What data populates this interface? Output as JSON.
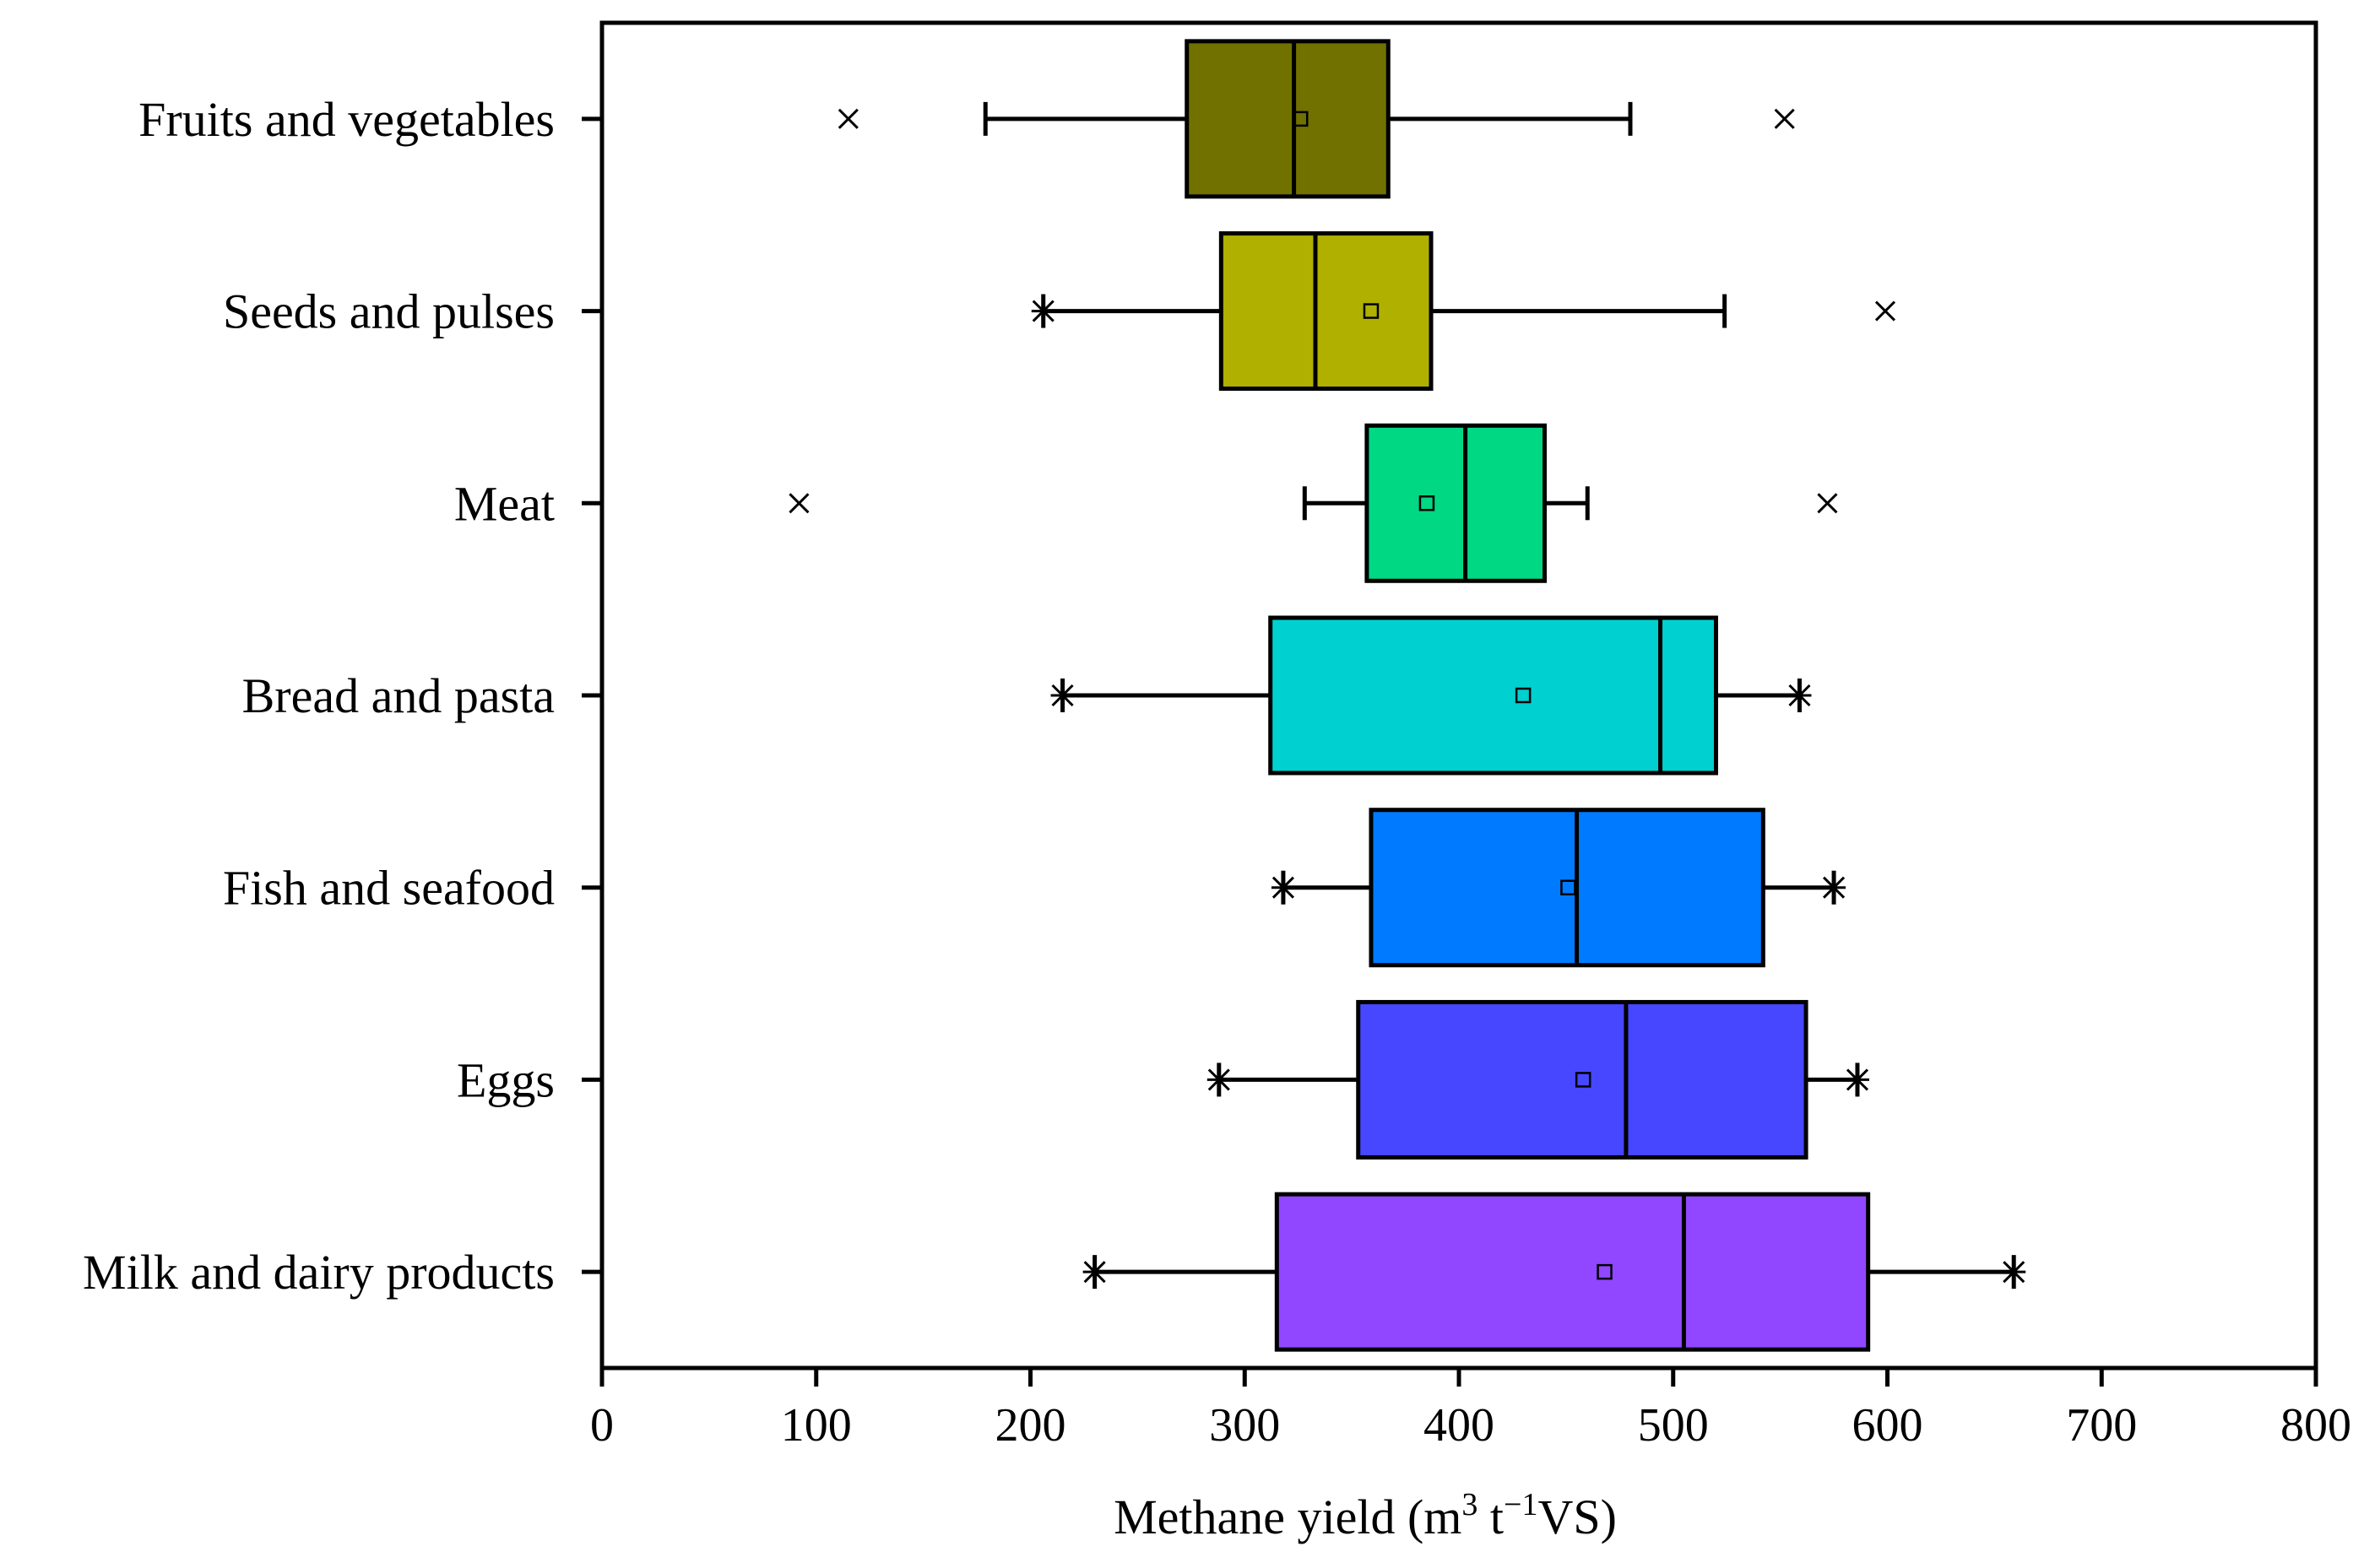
{
  "chart_data": {
    "type": "box",
    "orientation": "horizontal",
    "xlabel": {
      "main": "Methane yield (m",
      "sup1": "3",
      "mid": " t",
      "sup2": "−1",
      "end": "VS)"
    },
    "xlim": [
      0,
      800
    ],
    "xticks": [
      "0",
      "100",
      "200",
      "300",
      "400",
      "500",
      "600",
      "700",
      "800"
    ],
    "grid": false,
    "categories": [
      "Fruits and vegetables",
      "Seeds and pulses",
      "Meat",
      "Bread and pasta",
      "Fish and seafood",
      "Eggs",
      "Milk and dairy products"
    ],
    "boxes": [
      {
        "category": "Fruits and vegetables",
        "color": "#717100",
        "whisker_low": 179,
        "q1": 273,
        "median": 323,
        "q3": 367,
        "whisker_high": 480,
        "mean": 326,
        "outliers": [],
        "extremes": [
          115,
          552
        ]
      },
      {
        "category": "Seeds and pulses",
        "color": "#b0b000",
        "whisker_low": 206,
        "q1": 289,
        "median": 333,
        "q3": 387,
        "whisker_high": 524,
        "mean": 359,
        "outliers": [
          206
        ],
        "extremes": [
          599
        ]
      },
      {
        "category": "Meat",
        "color": "#00d884",
        "whisker_low": 328,
        "q1": 357,
        "median": 403,
        "q3": 440,
        "whisker_high": 460,
        "mean": 385,
        "outliers": [],
        "extremes": [
          92,
          572
        ]
      },
      {
        "category": "Bread and pasta",
        "color": "#00d0d0",
        "whisker_low": 215,
        "q1": 312,
        "median": 494,
        "q3": 520,
        "whisker_high": 559,
        "mean": 430,
        "outliers": [
          215,
          559
        ],
        "extremes": []
      },
      {
        "category": "Fish and seafood",
        "color": "#007bff",
        "whisker_low": 318,
        "q1": 359,
        "median": 455,
        "q3": 542,
        "whisker_high": 575,
        "mean": 451,
        "outliers": [
          318,
          575
        ],
        "extremes": []
      },
      {
        "category": "Eggs",
        "color": "#4747ff",
        "whisker_low": 288,
        "q1": 353,
        "median": 478,
        "q3": 562,
        "whisker_high": 586,
        "mean": 458,
        "outliers": [
          288,
          586
        ],
        "extremes": []
      },
      {
        "category": "Milk and dairy products",
        "color": "#9147ff",
        "whisker_low": 230,
        "q1": 315,
        "median": 505,
        "q3": 591,
        "whisker_high": 659,
        "mean": 468,
        "outliers": [
          230,
          659
        ],
        "extremes": []
      }
    ]
  }
}
